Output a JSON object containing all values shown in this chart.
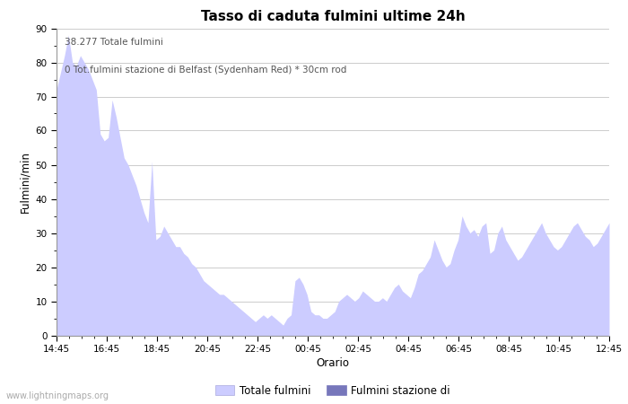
{
  "title": "Tasso di caduta fulmini ultime 24h",
  "xlabel": "Orario",
  "ylabel": "Fulmini/min",
  "annotation_line1": "38.277 Totale fulmini",
  "annotation_line2": "0 Tot.fulmini stazione di Belfast (Sydenham Red) * 30cm rod",
  "legend_label1": "Totale fulmini",
  "legend_label2": "Fulmini stazione di",
  "color_area1": "#ccccff",
  "color_area2": "#7777bb",
  "watermark": "www.lightningmaps.org",
  "x_ticks": [
    "14:45",
    "16:45",
    "18:45",
    "20:45",
    "22:45",
    "00:45",
    "02:45",
    "04:45",
    "06:45",
    "08:45",
    "10:45",
    "12:45"
  ],
  "ylim": [
    0,
    90
  ],
  "y_ticks": [
    0,
    10,
    20,
    30,
    40,
    50,
    60,
    70,
    80,
    90
  ],
  "values": [
    72,
    77,
    82,
    88,
    80,
    79,
    82,
    80,
    78,
    75,
    72,
    59,
    57,
    58,
    69,
    64,
    58,
    52,
    50,
    47,
    44,
    40,
    36,
    33,
    51,
    28,
    29,
    32,
    30,
    28,
    26,
    26,
    24,
    23,
    21,
    20,
    18,
    16,
    15,
    14,
    13,
    12,
    12,
    11,
    10,
    9,
    8,
    7,
    6,
    5,
    4,
    5,
    6,
    5,
    6,
    5,
    4,
    3,
    5,
    6,
    16,
    17,
    15,
    12,
    7,
    6,
    6,
    5,
    5,
    6,
    7,
    10,
    11,
    12,
    11,
    10,
    11,
    13,
    12,
    11,
    10,
    10,
    11,
    10,
    12,
    14,
    15,
    13,
    12,
    11,
    14,
    18,
    19,
    21,
    23,
    28,
    25,
    22,
    20,
    21,
    25,
    28,
    35,
    32,
    30,
    31,
    29,
    32,
    33,
    24,
    25,
    30,
    32,
    28,
    26,
    24,
    22,
    23,
    25,
    27,
    29,
    31,
    33,
    30,
    28,
    26,
    25,
    26,
    28,
    30,
    32,
    33,
    31,
    29,
    28,
    26,
    27,
    29,
    31,
    33
  ]
}
